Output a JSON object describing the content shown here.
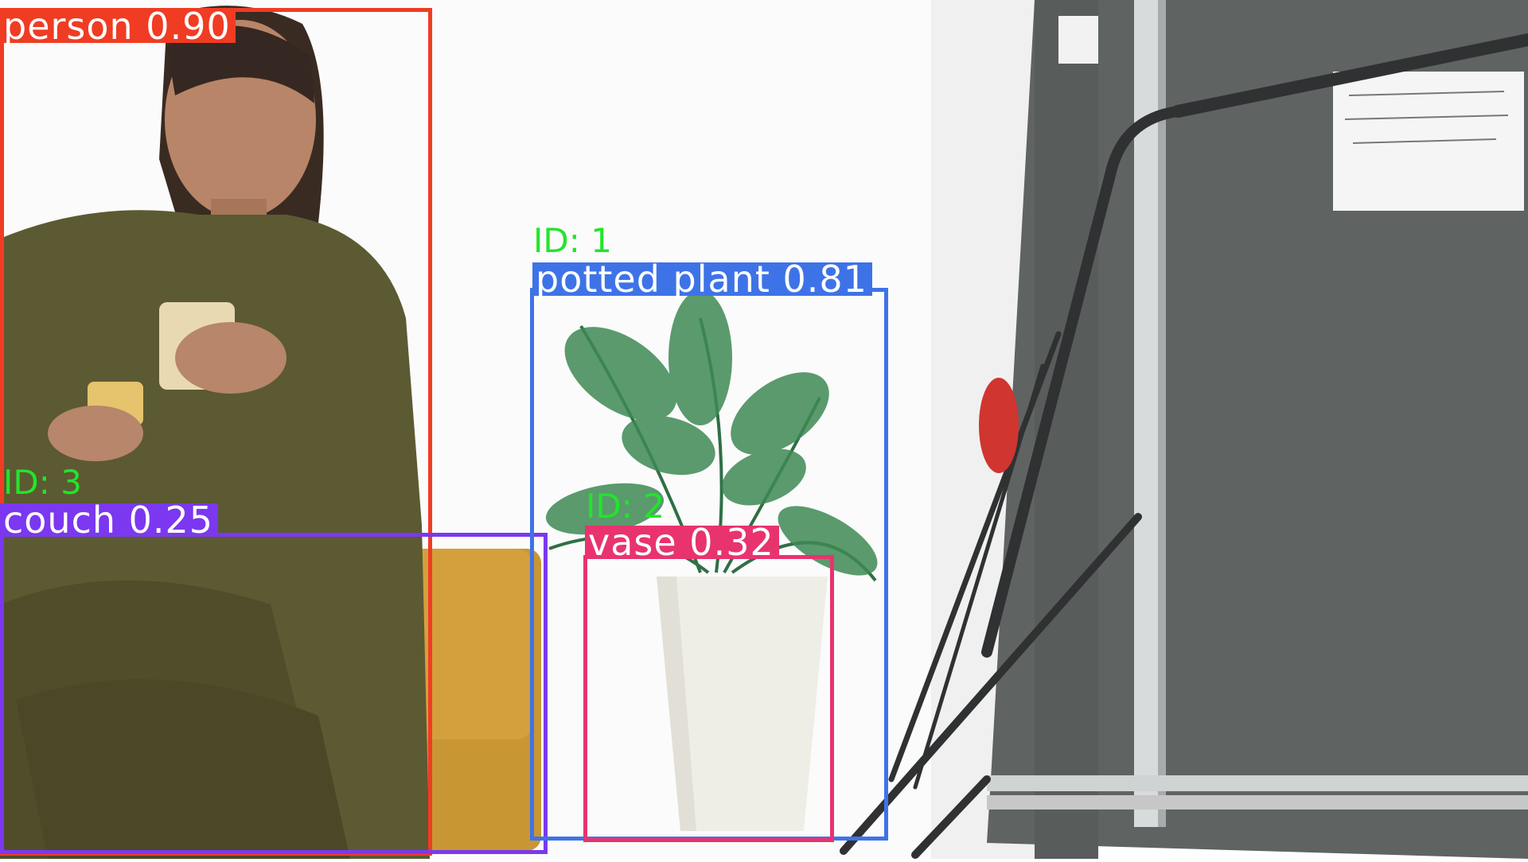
{
  "colors": {
    "person": "#f03c23",
    "potted_plant": "#3e73e8",
    "couch": "#7b38f0",
    "vase": "#e8336f",
    "id_text": "#22e52b"
  },
  "detections": [
    {
      "class_label": "person 0.90",
      "track_id": ""
    },
    {
      "class_label": "potted plant 0.81",
      "track_id": "ID: 1"
    },
    {
      "class_label": "couch 0.25",
      "track_id": "ID: 3"
    },
    {
      "class_label": "vase 0.32",
      "track_id": "ID: 2"
    }
  ]
}
